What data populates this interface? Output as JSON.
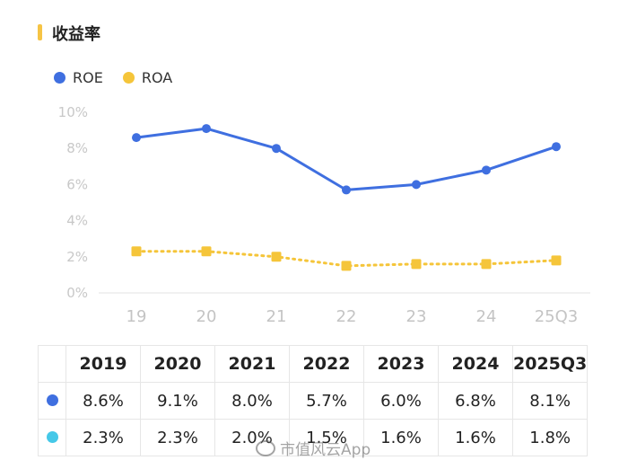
{
  "title": "收益率",
  "colors": {
    "roe": "#3f6fe0",
    "roa": "#f5c53a",
    "roa_table_dot": "#45c8e8",
    "accent": "#f6c445"
  },
  "legend": [
    {
      "name": "ROE",
      "icon": "circle"
    },
    {
      "name": "ROA",
      "icon": "circle"
    }
  ],
  "chart_data": {
    "type": "line",
    "title": "收益率",
    "categories": [
      "19",
      "20",
      "21",
      "22",
      "23",
      "24",
      "25Q3"
    ],
    "y_ticks": [
      "0%",
      "2%",
      "4%",
      "6%",
      "8%",
      "10%"
    ],
    "ylim": [
      0,
      10
    ],
    "series": [
      {
        "name": "ROE",
        "style": "solid",
        "marker": "circle",
        "values": [
          8.6,
          9.1,
          8.0,
          5.7,
          6.0,
          6.8,
          8.1
        ]
      },
      {
        "name": "ROA",
        "style": "dotted",
        "marker": "square",
        "values": [
          2.3,
          2.3,
          2.0,
          1.5,
          1.6,
          1.6,
          1.8
        ]
      }
    ],
    "grid": false,
    "legend_position": "top-left"
  },
  "table": {
    "headers": [
      "2019",
      "2020",
      "2021",
      "2022",
      "2023",
      "2024",
      "2025Q3"
    ],
    "rows": [
      {
        "series": "ROE",
        "cells": [
          "8.6%",
          "9.1%",
          "8.0%",
          "5.7%",
          "6.0%",
          "6.8%",
          "8.1%"
        ]
      },
      {
        "series": "ROA",
        "cells": [
          "2.3%",
          "2.3%",
          "2.0%",
          "1.5%",
          "1.6%",
          "1.6%",
          "1.8%"
        ]
      }
    ]
  },
  "watermark": "市值风云App"
}
